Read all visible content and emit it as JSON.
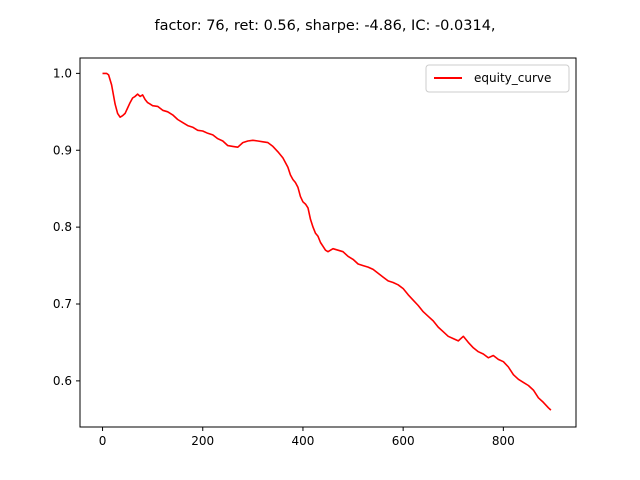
{
  "chart_data": {
    "type": "line",
    "title": "factor: 76, ret: 0.56, sharpe: -4.86, IC: -0.0314,",
    "xlabel": "",
    "ylabel": "",
    "xlim": [
      -45,
      945
    ],
    "ylim": [
      0.54,
      1.02
    ],
    "xticks": [
      0,
      200,
      400,
      600,
      800
    ],
    "yticks": [
      0.6,
      0.7,
      0.8,
      0.9,
      1.0
    ],
    "xtick_labels": [
      "0",
      "200",
      "400",
      "600",
      "800"
    ],
    "ytick_labels": [
      "0.6",
      "0.7",
      "0.8",
      "0.9",
      "1.0"
    ],
    "grid": false,
    "legend_position": "top-right",
    "series": [
      {
        "name": "equity_curve",
        "color": "#ff0000",
        "x": [
          0,
          8,
          12,
          18,
          25,
          30,
          35,
          40,
          45,
          50,
          55,
          60,
          65,
          70,
          75,
          80,
          85,
          90,
          95,
          100,
          110,
          120,
          130,
          140,
          150,
          160,
          170,
          180,
          190,
          200,
          210,
          220,
          230,
          240,
          250,
          260,
          270,
          280,
          290,
          300,
          310,
          320,
          330,
          340,
          350,
          360,
          370,
          375,
          380,
          385,
          390,
          395,
          400,
          405,
          410,
          415,
          420,
          425,
          430,
          435,
          440,
          445,
          450,
          460,
          470,
          480,
          490,
          500,
          510,
          520,
          530,
          540,
          550,
          560,
          570,
          580,
          590,
          600,
          610,
          620,
          630,
          640,
          650,
          660,
          670,
          680,
          690,
          700,
          710,
          720,
          730,
          740,
          750,
          760,
          770,
          780,
          790,
          800,
          810,
          820,
          830,
          840,
          850,
          860,
          870,
          880,
          890,
          895
        ],
        "y": [
          1.0,
          1.0,
          0.998,
          0.985,
          0.96,
          0.948,
          0.943,
          0.945,
          0.948,
          0.955,
          0.962,
          0.968,
          0.97,
          0.973,
          0.97,
          0.972,
          0.966,
          0.962,
          0.96,
          0.958,
          0.957,
          0.952,
          0.95,
          0.946,
          0.94,
          0.936,
          0.932,
          0.93,
          0.926,
          0.925,
          0.922,
          0.92,
          0.915,
          0.912,
          0.906,
          0.905,
          0.904,
          0.91,
          0.912,
          0.913,
          0.912,
          0.911,
          0.91,
          0.905,
          0.898,
          0.89,
          0.878,
          0.868,
          0.862,
          0.858,
          0.852,
          0.84,
          0.833,
          0.83,
          0.825,
          0.81,
          0.8,
          0.792,
          0.788,
          0.78,
          0.775,
          0.77,
          0.768,
          0.772,
          0.77,
          0.768,
          0.762,
          0.758,
          0.752,
          0.75,
          0.748,
          0.745,
          0.74,
          0.735,
          0.73,
          0.728,
          0.725,
          0.72,
          0.712,
          0.705,
          0.698,
          0.69,
          0.684,
          0.678,
          0.67,
          0.664,
          0.658,
          0.655,
          0.652,
          0.658,
          0.65,
          0.643,
          0.638,
          0.635,
          0.63,
          0.633,
          0.628,
          0.625,
          0.618,
          0.608,
          0.602,
          0.598,
          0.594,
          0.588,
          0.578,
          0.572,
          0.565,
          0.562
        ]
      }
    ]
  }
}
